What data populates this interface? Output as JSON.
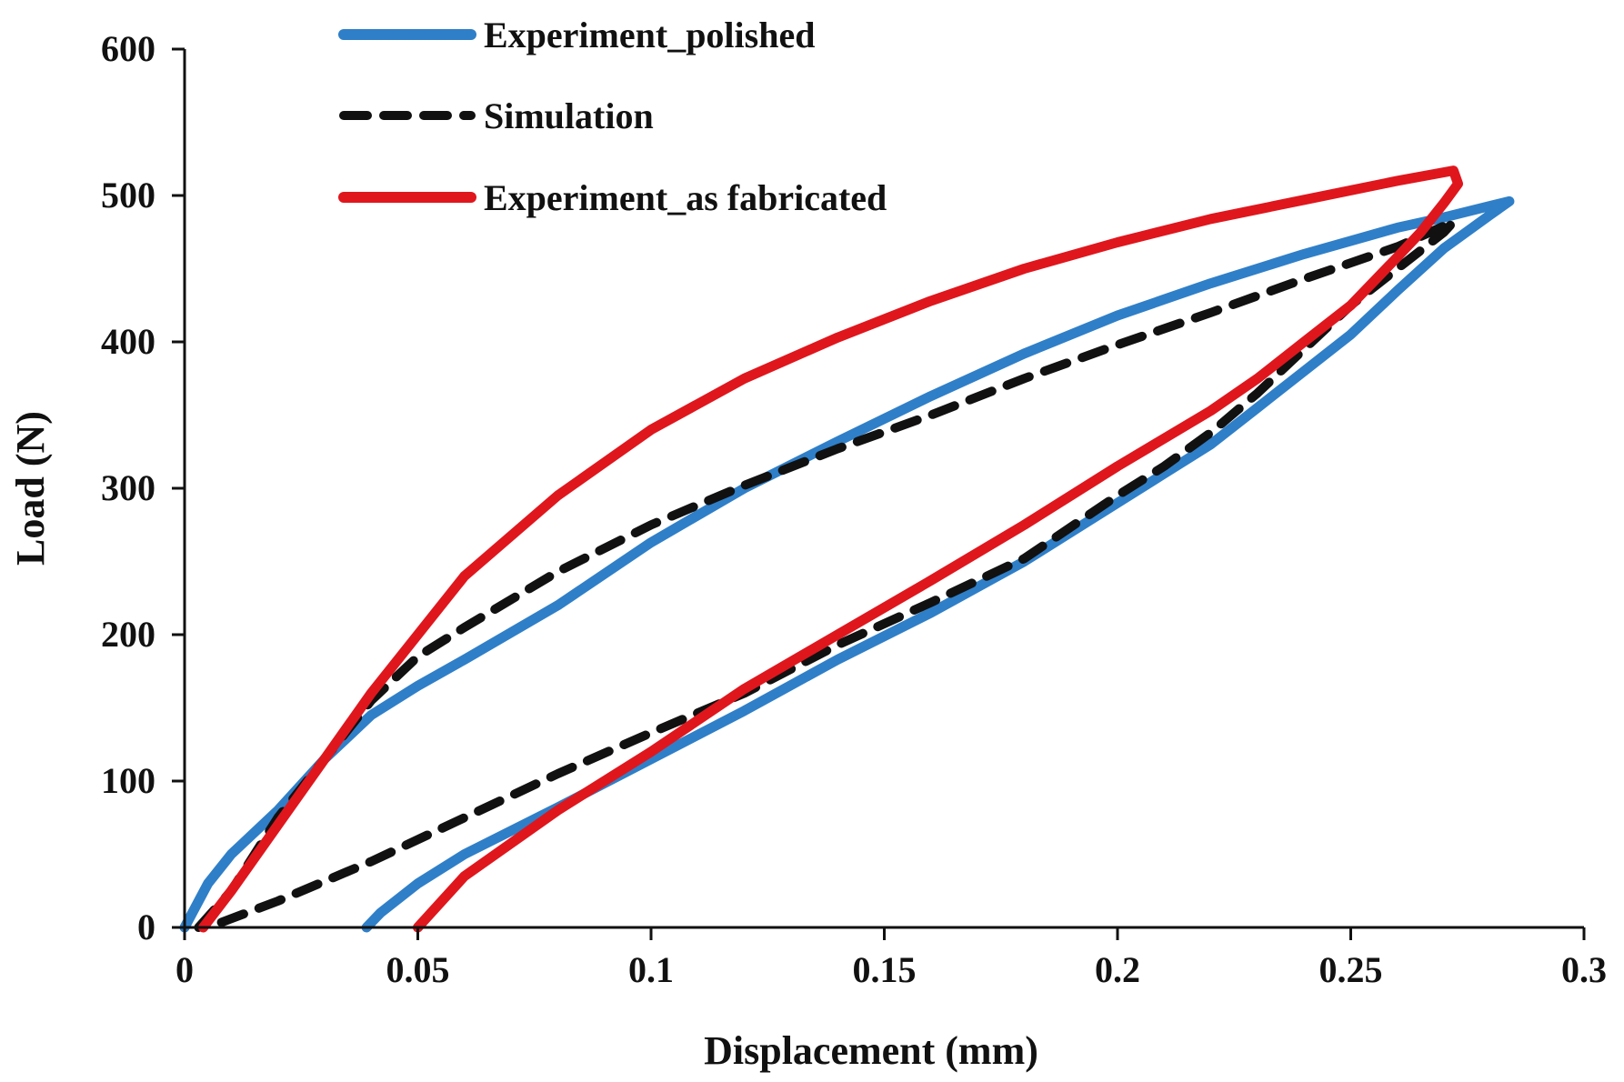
{
  "chart_data": {
    "type": "line",
    "title": "",
    "xlabel": "Displacement (mm)",
    "ylabel": "Load (N)",
    "xlim": [
      0,
      0.3
    ],
    "ylim": [
      0,
      600
    ],
    "x_ticks": [
      {
        "value": 0,
        "label": "0"
      },
      {
        "value": 0.05,
        "label": "0.05"
      },
      {
        "value": 0.1,
        "label": "0.1"
      },
      {
        "value": 0.15,
        "label": "0.15"
      },
      {
        "value": 0.2,
        "label": "0.2"
      },
      {
        "value": 0.25,
        "label": "0.25"
      },
      {
        "value": 0.3,
        "label": "0.3"
      }
    ],
    "y_ticks": [
      {
        "value": 0,
        "label": "0"
      },
      {
        "value": 100,
        "label": "100"
      },
      {
        "value": 200,
        "label": "200"
      },
      {
        "value": 300,
        "label": "300"
      },
      {
        "value": 400,
        "label": "400"
      },
      {
        "value": 500,
        "label": "500"
      },
      {
        "value": 600,
        "label": "600"
      }
    ],
    "grid": false,
    "legend_position": "top-left",
    "series": [
      {
        "name": "Experiment_polished",
        "color": "#2F7FC8",
        "dash": "solid",
        "points": [
          [
            0,
            0
          ],
          [
            0.005,
            30
          ],
          [
            0.01,
            50
          ],
          [
            0.02,
            80
          ],
          [
            0.03,
            115
          ],
          [
            0.04,
            145
          ],
          [
            0.05,
            165
          ],
          [
            0.06,
            183
          ],
          [
            0.08,
            220
          ],
          [
            0.1,
            263
          ],
          [
            0.12,
            300
          ],
          [
            0.14,
            332
          ],
          [
            0.16,
            363
          ],
          [
            0.18,
            392
          ],
          [
            0.2,
            418
          ],
          [
            0.22,
            440
          ],
          [
            0.24,
            460
          ],
          [
            0.26,
            478
          ],
          [
            0.27,
            485
          ],
          [
            0.28,
            493
          ],
          [
            0.284,
            496
          ],
          [
            0.28,
            487
          ],
          [
            0.27,
            464
          ],
          [
            0.26,
            435
          ],
          [
            0.25,
            405
          ],
          [
            0.24,
            380
          ],
          [
            0.23,
            355
          ],
          [
            0.22,
            330
          ],
          [
            0.21,
            310
          ],
          [
            0.2,
            290
          ],
          [
            0.18,
            250
          ],
          [
            0.16,
            215
          ],
          [
            0.14,
            183
          ],
          [
            0.12,
            148
          ],
          [
            0.1,
            115
          ],
          [
            0.08,
            82
          ],
          [
            0.06,
            50
          ],
          [
            0.05,
            30
          ],
          [
            0.042,
            10
          ],
          [
            0.039,
            0
          ]
        ]
      },
      {
        "name": "Simulation",
        "color": "#111111",
        "dash": "dashed",
        "points": [
          [
            0.003,
            0
          ],
          [
            0.01,
            25
          ],
          [
            0.02,
            75
          ],
          [
            0.03,
            115
          ],
          [
            0.04,
            155
          ],
          [
            0.05,
            185
          ],
          [
            0.06,
            205
          ],
          [
            0.08,
            243
          ],
          [
            0.1,
            275
          ],
          [
            0.12,
            302
          ],
          [
            0.14,
            327
          ],
          [
            0.16,
            350
          ],
          [
            0.18,
            375
          ],
          [
            0.2,
            398
          ],
          [
            0.22,
            420
          ],
          [
            0.24,
            443
          ],
          [
            0.26,
            465
          ],
          [
            0.272,
            482
          ],
          [
            0.27,
            475
          ],
          [
            0.26,
            450
          ],
          [
            0.25,
            425
          ],
          [
            0.24,
            395
          ],
          [
            0.23,
            365
          ],
          [
            0.22,
            338
          ],
          [
            0.21,
            315
          ],
          [
            0.2,
            295
          ],
          [
            0.18,
            252
          ],
          [
            0.16,
            222
          ],
          [
            0.14,
            193
          ],
          [
            0.12,
            160
          ],
          [
            0.1,
            133
          ],
          [
            0.08,
            105
          ],
          [
            0.06,
            75
          ],
          [
            0.04,
            45
          ],
          [
            0.02,
            18
          ],
          [
            0.005,
            0
          ]
        ]
      },
      {
        "name": "Experiment_as fabricated",
        "color": "#E0161D",
        "dash": "solid",
        "points": [
          [
            0.004,
            0
          ],
          [
            0.01,
            25
          ],
          [
            0.02,
            70
          ],
          [
            0.03,
            115
          ],
          [
            0.04,
            160
          ],
          [
            0.05,
            200
          ],
          [
            0.06,
            240
          ],
          [
            0.08,
            295
          ],
          [
            0.1,
            340
          ],
          [
            0.12,
            375
          ],
          [
            0.14,
            403
          ],
          [
            0.16,
            428
          ],
          [
            0.18,
            450
          ],
          [
            0.2,
            468
          ],
          [
            0.22,
            484
          ],
          [
            0.24,
            497
          ],
          [
            0.26,
            510
          ],
          [
            0.272,
            517
          ],
          [
            0.273,
            508
          ],
          [
            0.27,
            495
          ],
          [
            0.265,
            475
          ],
          [
            0.26,
            458
          ],
          [
            0.25,
            425
          ],
          [
            0.24,
            400
          ],
          [
            0.23,
            375
          ],
          [
            0.22,
            353
          ],
          [
            0.2,
            315
          ],
          [
            0.18,
            275
          ],
          [
            0.16,
            237
          ],
          [
            0.14,
            200
          ],
          [
            0.12,
            163
          ],
          [
            0.1,
            120
          ],
          [
            0.08,
            80
          ],
          [
            0.06,
            35
          ],
          [
            0.05,
            0
          ]
        ]
      }
    ]
  }
}
